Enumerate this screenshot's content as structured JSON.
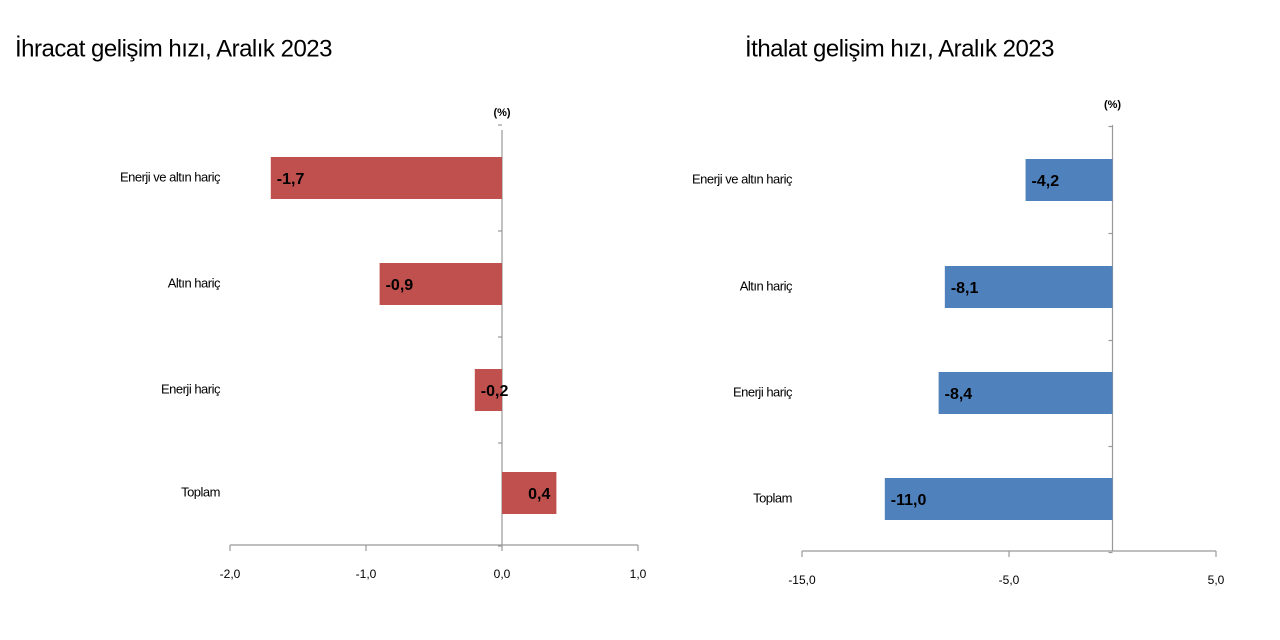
{
  "chart_data": [
    {
      "type": "bar",
      "orientation": "horizontal",
      "title": "İhracat gelişim hızı, Aralık 2023",
      "unit_label": "(%)",
      "categories": [
        "Enerji ve altın hariç",
        "Altın hariç",
        "Enerji hariç",
        "Toplam"
      ],
      "values": [
        -1.7,
        -0.9,
        -0.2,
        0.4
      ],
      "value_labels": [
        "-1,7",
        "-0,9",
        "-0,2",
        "0,4"
      ],
      "color": "#c0504d",
      "xlim": [
        -2,
        1
      ],
      "xticks": [
        {
          "value": -2,
          "label": "-2,0"
        },
        {
          "value": -1,
          "label": "-1,0"
        },
        {
          "value": 0,
          "label": "0,0"
        },
        {
          "value": 1,
          "label": "1,0"
        }
      ]
    },
    {
      "type": "bar",
      "orientation": "horizontal",
      "title": "İthalat gelişim hızı, Aralık 2023",
      "unit_label": "(%)",
      "categories": [
        "Enerji ve altın hariç",
        "Altın hariç",
        "Enerji hariç",
        "Toplam"
      ],
      "values": [
        -4.2,
        -8.1,
        -8.4,
        -11.0
      ],
      "value_labels": [
        "-4,2",
        "-8,1",
        "-8,4",
        "-11,0"
      ],
      "color": "#4f81bd",
      "xlim": [
        -15,
        5
      ],
      "xticks": [
        {
          "value": -15,
          "label": "-15,0"
        },
        {
          "value": -5,
          "label": "-5,0"
        },
        {
          "value": 5,
          "label": "5,0"
        }
      ]
    }
  ]
}
